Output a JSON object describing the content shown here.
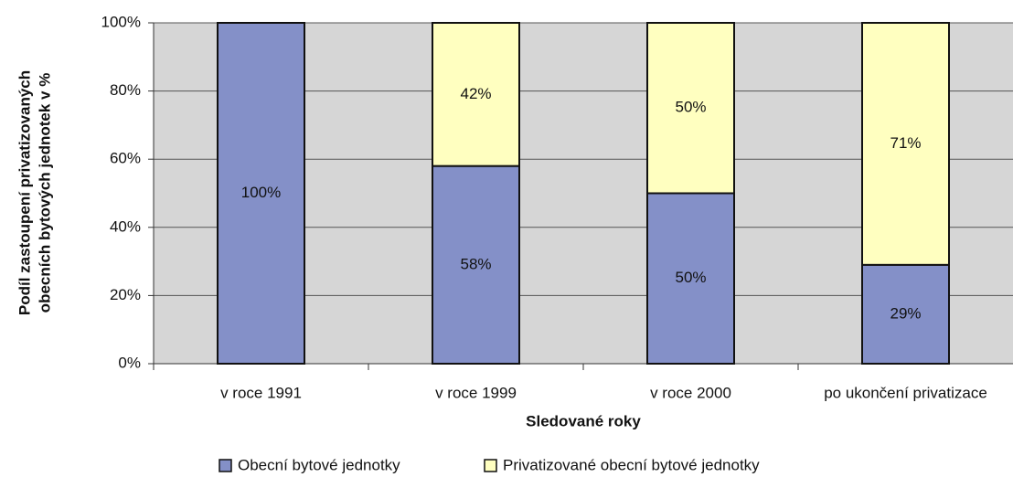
{
  "chart_data": {
    "type": "stacked_bar",
    "ylabel": [
      "Podíl zastoupení privatizovaných",
      "obecních bytových jednotek v %"
    ],
    "xlabel": "Sledované roky",
    "categories": [
      "v roce 1991",
      "v roce 1999",
      "v roce 2000",
      "po ukončení privatizace"
    ],
    "series": [
      {
        "name": "Obecní bytové jednotky",
        "color": "#8490c8",
        "values": [
          100,
          58,
          50,
          29
        ],
        "value_labels": [
          "100%",
          "58%",
          "50%",
          "29%"
        ]
      },
      {
        "name": "Privatizované obecní bytové jednotky",
        "color": "#ffffc0",
        "values": [
          0,
          42,
          50,
          71
        ],
        "value_labels": [
          null,
          "42%",
          "50%",
          "71%"
        ]
      }
    ],
    "ylim": [
      0,
      100
    ],
    "yticks": [
      {
        "value": 0,
        "label": "0%"
      },
      {
        "value": 20,
        "label": "20%"
      },
      {
        "value": 40,
        "label": "40%"
      },
      {
        "value": 60,
        "label": "60%"
      },
      {
        "value": 80,
        "label": "80%"
      },
      {
        "value": 100,
        "label": "100%"
      }
    ],
    "grid": true,
    "legend": "bottom"
  }
}
